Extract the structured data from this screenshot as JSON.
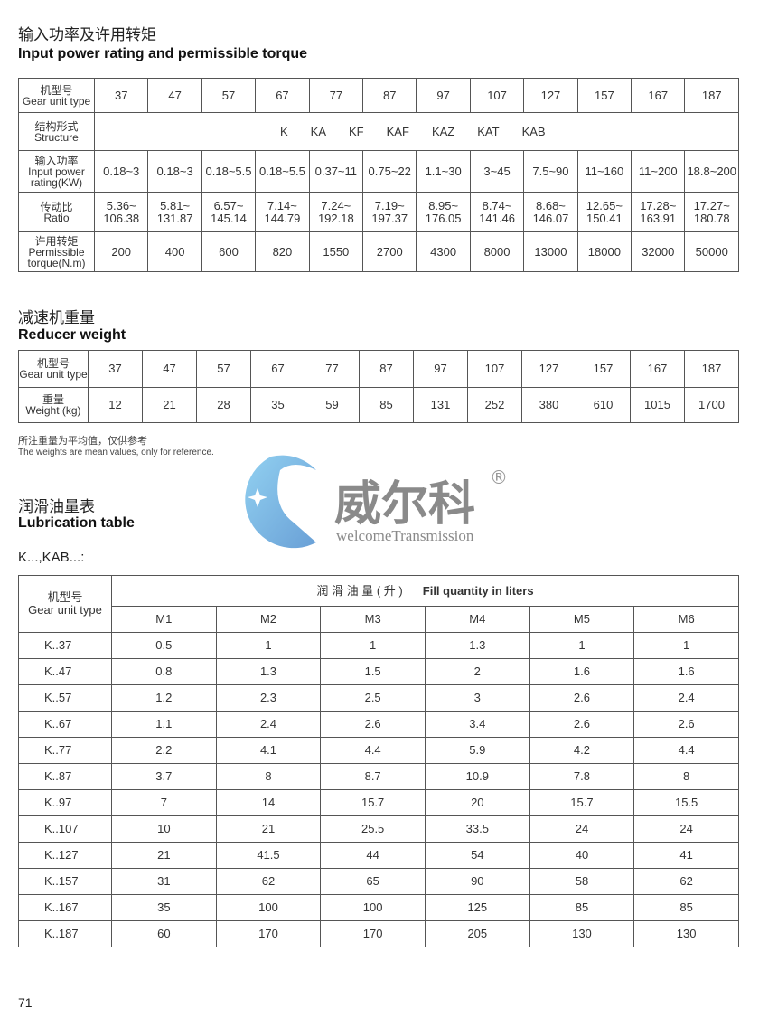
{
  "section1": {
    "title_cn": "输入功率及许用转矩",
    "title_en": "Input power rating and permissible torque",
    "rows": [
      {
        "label_cn": "机型号",
        "label_en": "Gear unit type",
        "values": [
          "37",
          "47",
          "57",
          "67",
          "77",
          "87",
          "97",
          "107",
          "127",
          "157",
          "167",
          "187"
        ]
      },
      {
        "label_cn": "结构形式",
        "label_en": "Structure",
        "structure": [
          "K",
          "KA",
          "KF",
          "KAF",
          "KAZ",
          "KAT",
          "KAB"
        ]
      },
      {
        "label_cn": "输入功率",
        "label_en": "Input power rating(KW)",
        "values": [
          "0.18~3",
          "0.18~3",
          "0.18~5.5",
          "0.18~5.5",
          "0.37~11",
          "0.75~22",
          "1.1~30",
          "3~45",
          "7.5~90",
          "11~160",
          "11~200",
          "18.8~200"
        ]
      },
      {
        "label_cn": "传动比",
        "label_en": "Ratio",
        "values": [
          "5.36~ 106.38",
          "5.81~ 131.87",
          "6.57~ 145.14",
          "7.14~ 144.79",
          "7.24~ 192.18",
          "7.19~ 197.37",
          "8.95~ 176.05",
          "8.74~ 141.46",
          "8.68~ 146.07",
          "12.65~ 150.41",
          "17.28~ 163.91",
          "17.27~ 180.78"
        ]
      },
      {
        "label_cn": "许用转矩",
        "label_en": "Permissible torque(N.m)",
        "values": [
          "200",
          "400",
          "600",
          "820",
          "1550",
          "2700",
          "4300",
          "8000",
          "13000",
          "18000",
          "32000",
          "50000"
        ]
      }
    ]
  },
  "section2": {
    "title_cn": "减速机重量",
    "title_en": "Reducer weight",
    "rows": [
      {
        "label_cn": "机型号",
        "label_en": "Gear unit type",
        "values": [
          "37",
          "47",
          "57",
          "67",
          "77",
          "87",
          "97",
          "107",
          "127",
          "157",
          "167",
          "187"
        ]
      },
      {
        "label_cn": "重量",
        "label_en": "Weight (kg)",
        "values": [
          "12",
          "21",
          "28",
          "35",
          "59",
          "85",
          "131",
          "252",
          "380",
          "610",
          "1015",
          "1700"
        ]
      }
    ],
    "note_cn": "所注重量为平均值，仅供参考",
    "note_en": "The weights are mean values, only for reference."
  },
  "logo": {
    "text_cn": "威尔科",
    "text_en": "welcomeTransmission",
    "mark": "®",
    "colors": {
      "blue": "#5b9bd5",
      "gray": "#8a8a8a"
    }
  },
  "section3": {
    "title_cn": "润滑油量表",
    "title_en": "Lubrication table",
    "subtitle": "K...,KAB...:",
    "head_type_cn": "机型号",
    "head_type_en": "Gear unit type",
    "head_fill_cn": "润 滑 油 量 ( 升 )",
    "head_fill_en": "Fill quantity in liters",
    "positions": [
      "M1",
      "M2",
      "M3",
      "M4",
      "M5",
      "M6"
    ],
    "rows": [
      [
        "K..37",
        "0.5",
        "1",
        "1",
        "1.3",
        "1",
        "1"
      ],
      [
        "K..47",
        "0.8",
        "1.3",
        "1.5",
        "2",
        "1.6",
        "1.6"
      ],
      [
        "K..57",
        "1.2",
        "2.3",
        "2.5",
        "3",
        "2.6",
        "2.4"
      ],
      [
        "K..67",
        "1.1",
        "2.4",
        "2.6",
        "3.4",
        "2.6",
        "2.6"
      ],
      [
        "K..77",
        "2.2",
        "4.1",
        "4.4",
        "5.9",
        "4.2",
        "4.4"
      ],
      [
        "K..87",
        "3.7",
        "8",
        "8.7",
        "10.9",
        "7.8",
        "8"
      ],
      [
        "K..97",
        "7",
        "14",
        "15.7",
        "20",
        "15.7",
        "15.5"
      ],
      [
        "K..107",
        "10",
        "21",
        "25.5",
        "33.5",
        "24",
        "24"
      ],
      [
        "K..127",
        "21",
        "41.5",
        "44",
        "54",
        "40",
        "41"
      ],
      [
        "K..157",
        "31",
        "62",
        "65",
        "90",
        "58",
        "62"
      ],
      [
        "K..167",
        "35",
        "100",
        "100",
        "125",
        "85",
        "85"
      ],
      [
        "K..187",
        "60",
        "170",
        "170",
        "205",
        "130",
        "130"
      ]
    ]
  },
  "page_number": "71"
}
